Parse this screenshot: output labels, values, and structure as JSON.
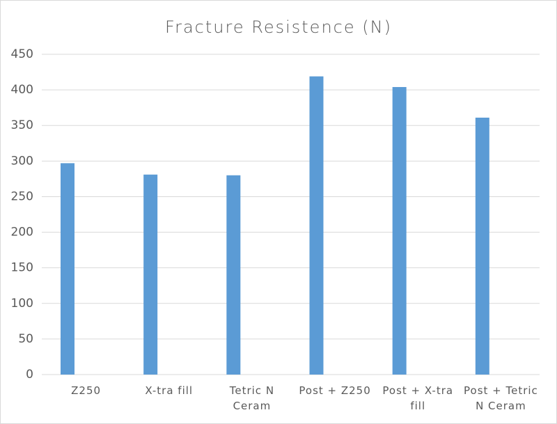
{
  "chart_data": {
    "type": "bar",
    "title": "Fracture Resistence (N)",
    "categories": [
      "Z250",
      "X-tra fill",
      "Tetric N Ceram",
      "Post + Z250",
      "Post + X-tra fill",
      "Post + Tetric N Ceram"
    ],
    "values": [
      297,
      281,
      280,
      419,
      404,
      361
    ],
    "color": "#5b9bd5",
    "ylim": [
      0,
      450
    ],
    "yticks": [
      0,
      50,
      100,
      150,
      200,
      250,
      300,
      350,
      400,
      450
    ],
    "grid": true
  }
}
